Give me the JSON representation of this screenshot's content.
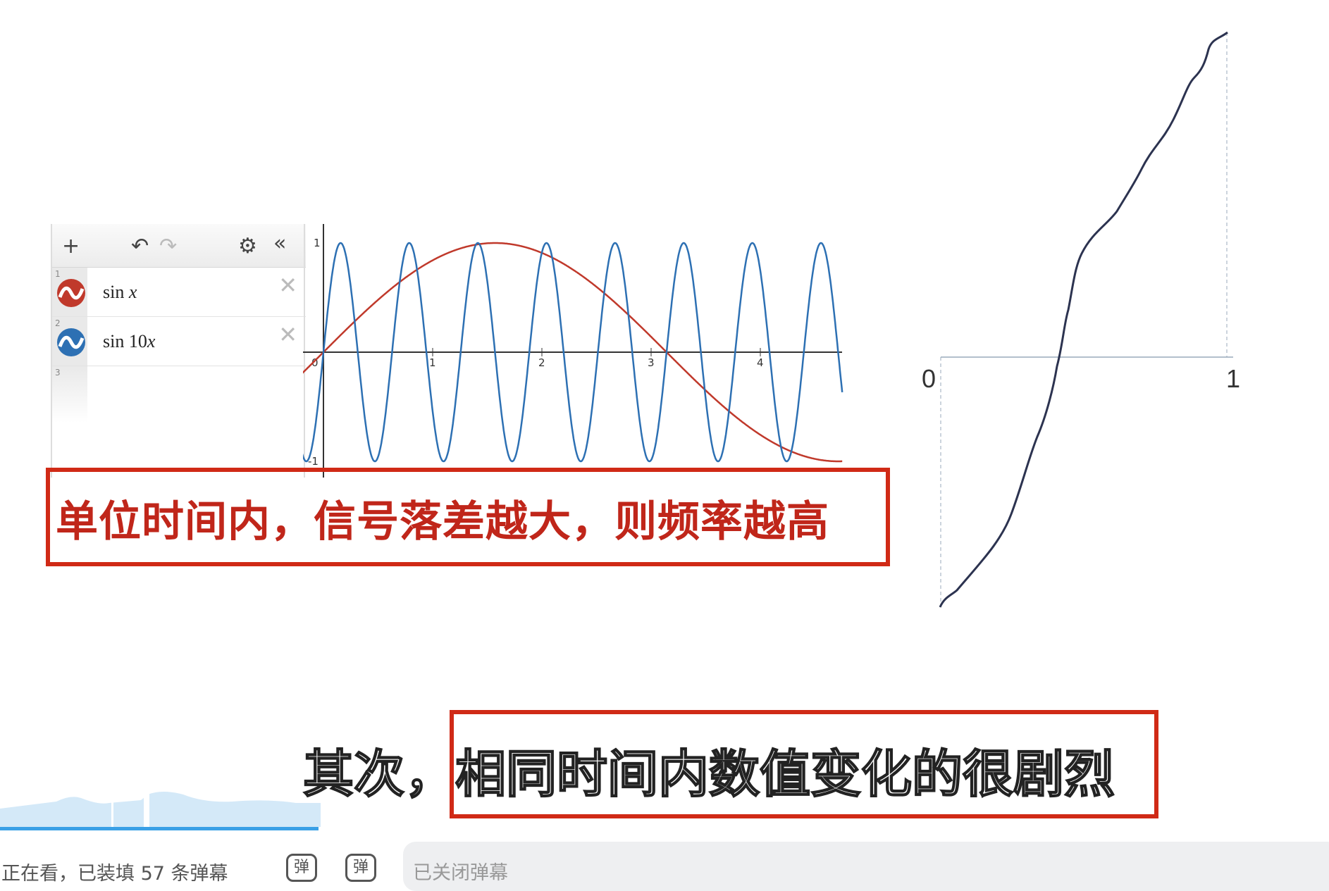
{
  "desmos": {
    "toolbar": {
      "add": "+",
      "undo": "↶",
      "redo": "↷",
      "settings": "⚙",
      "collapse": "«"
    },
    "expressions": [
      {
        "index": "1",
        "fn": "sin",
        "arg_num": "",
        "arg_var": "x",
        "color": "#c0392b"
      },
      {
        "index": "2",
        "fn": "sin",
        "arg_num": "10",
        "arg_var": "x",
        "color": "#2d70b3"
      },
      {
        "index": "3"
      }
    ],
    "graph": {
      "x_ticks": [
        "0",
        "1",
        "2",
        "3",
        "4"
      ],
      "y_ticks": [
        "1",
        "-1"
      ],
      "xlim": [
        -0.2,
        4.75
      ],
      "ylim": [
        -1,
        1
      ]
    }
  },
  "callout": "单位时间内，信号落差越大，则频率越高",
  "right_graph": {
    "x_start_label": "0",
    "x_end_label": "1"
  },
  "subtitle": {
    "prefix": "其次，",
    "highlight": "相同时间内数值变化的很剧烈"
  },
  "footer": {
    "status": "正在看，已装填 57 条弹幕",
    "danmaku_icon": "弹",
    "danmaku_input_placeholder": "已关闭弹幕"
  },
  "colors": {
    "box": "#d02a16",
    "progress": "#3aa0e6"
  }
}
